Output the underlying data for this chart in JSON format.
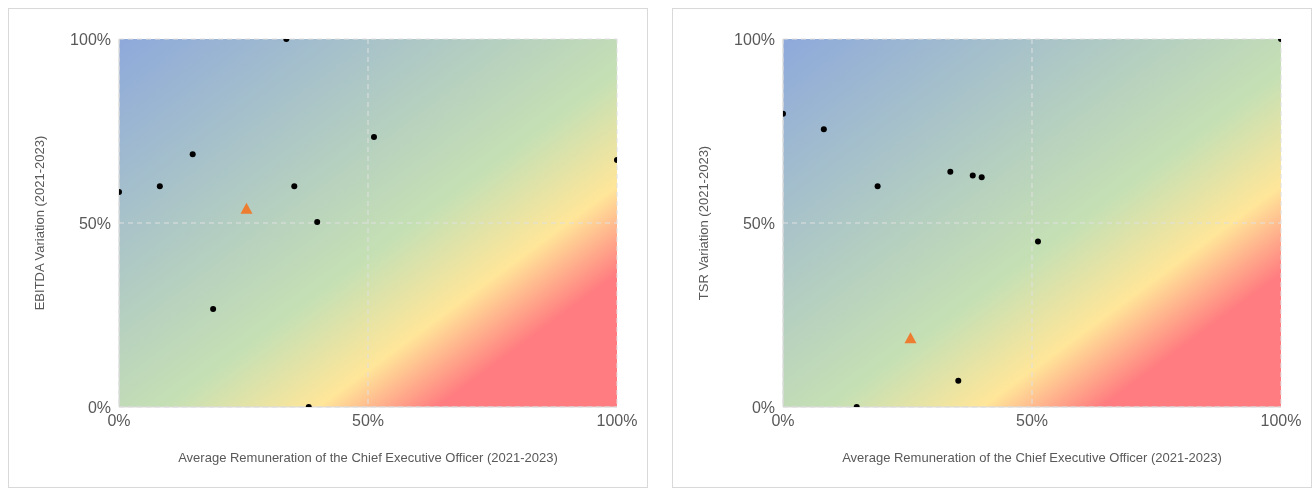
{
  "chart_data": [
    {
      "type": "scatter",
      "xlabel": "Average Remuneration of the Chief Executive Officer (2021-2023)",
      "ylabel": "EBITDA Variation (2021-2023)",
      "xlim": [
        0,
        100
      ],
      "ylim": [
        0,
        100
      ],
      "xticks": [
        {
          "value": 0,
          "label": "0%"
        },
        {
          "value": 50,
          "label": "50%"
        },
        {
          "value": 100,
          "label": "100%"
        }
      ],
      "yticks": [
        {
          "value": 0,
          "label": "0%"
        },
        {
          "value": 50,
          "label": "50%"
        },
        {
          "value": 100,
          "label": "100%"
        }
      ],
      "grid": true,
      "legend": false,
      "series": [
        {
          "color": "#000000",
          "marker": "circle",
          "x": [
            0,
            8.2,
            14.8,
            18.9,
            33.6,
            35.2,
            39.8,
            38.1,
            51.2,
            100
          ],
          "values": [
            58.4,
            60,
            68.7,
            26.6,
            100,
            60,
            50.3,
            0,
            73.4,
            67.1
          ]
        },
        {
          "color": "#ed7d31",
          "marker": "triangle",
          "x": [
            25.6
          ],
          "values": [
            53.9
          ]
        }
      ]
    },
    {
      "type": "scatter",
      "xlabel": "Average Remuneration of the Chief Executive Officer (2021-2023)",
      "ylabel": "TSR Variation (2021-2023)",
      "xlim": [
        0,
        100
      ],
      "ylim": [
        0,
        100
      ],
      "xticks": [
        {
          "value": 0,
          "label": "0%"
        },
        {
          "value": 50,
          "label": "50%"
        },
        {
          "value": 100,
          "label": "100%"
        }
      ],
      "yticks": [
        {
          "value": 0,
          "label": "0%"
        },
        {
          "value": 50,
          "label": "50%"
        },
        {
          "value": 100,
          "label": "100%"
        }
      ],
      "grid": true,
      "legend": false,
      "series": [
        {
          "color": "#000000",
          "marker": "circle",
          "x": [
            0,
            8.2,
            19,
            33.6,
            38.1,
            39.9,
            51.2,
            100,
            35.2,
            14.8
          ],
          "values": [
            79.7,
            75.5,
            60,
            63.9,
            62.9,
            62.4,
            45,
            100,
            7.1,
            0
          ]
        },
        {
          "color": "#ed7d31",
          "marker": "triangle",
          "x": [
            25.6
          ],
          "values": [
            18.7
          ]
        }
      ]
    }
  ]
}
